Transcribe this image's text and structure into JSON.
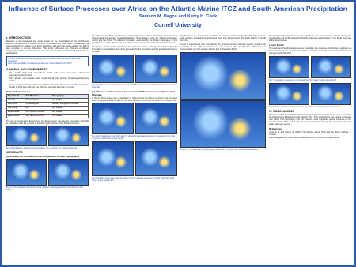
{
  "header": {
    "title": "Influence of Surface Processes over Africa on the Atlantic Marine ITCZ and South American Precipitation",
    "authors": "Samson M. Hagos and Kerry H. Cook",
    "affiliation": "Cornell University"
  },
  "intro": {
    "heading": "I. INTRODUCTION",
    "text": "Because of its monsoonal and zonal impact on the precipitation of the neighboring regions, the dynamics of Atlantic summer ITCZ merits the much effort to understand its various aspects. In addition to its direct interaction with the local ocean surface, the AMI is also sensitive to remote influences. This study addresses the influence of African topography and the surface moisture over Africa on the Atlantic ITCZ and South American precipitation.",
    "questions": [
      "Is there influence of African topography on circulation over the Atlantic and South America?",
      "How does variability in surface moisture over Africa influence the AMI?"
    ]
  },
  "model": {
    "heading": "II. MODEL AND EXPERIMENTS",
    "bullets": [
      "The GFDL R30 L14 atmospheric GCM with moist convective adjustment parameterization is used.",
      "SST, albedo, soil moisture, solar angle are all fixed at their climatological January values.",
      "Each simulation begins with an equilibrium dry atmosphere at rest. The integration length is 2700 days with the first 200 days removed as a spin up period."
    ]
  },
  "table": {
    "title": "Table of Experiments",
    "header": [
      "Experiment",
      "Soil Moisture",
      "Topography"
    ],
    "rows": [
      [
        "Control",
        "Climatological",
        "Full Global"
      ],
      [
        "Flat Africa",
        "Climatological",
        "Global - topography removed"
      ],
      [
        "Dry Africa",
        "Dry",
        "Full Global"
      ],
      [
        "Experiment1",
        "Dry Southern Africa",
        "Full Global"
      ],
      [
        "Experiment2",
        "Wet Southern Africa",
        "Full Global"
      ]
    ],
    "note": "The pair of experiments, Experiment1 and Experiment2, simulate the anomalies of the AMI in association with the dryness or wetness of the surface of the African continent."
  },
  "results": {
    "heading": "III RESULTS",
    "sub_a": "(a) Influence of Circulations Associated with African Topography",
    "sub_b": "(b) Influence of Circulations Associated with Perturbations in African Soil Moisture"
  },
  "captions": {
    "fig1": "Fig 1 Precipitation and low level circulation (a) in control, (b) in flat experiment.",
    "fig2": "Fig 2 (a) Precipitation and (b) low level moisture convergence from control minus flat Africa.",
    "fig3": "Fig 3 (a) Wind (m/s) and geopotential (m) near the tropopause and (b) zonal wind and velocity potential.",
    "fig4": "Fig 4 (a) Precipitation (mm/day) and (b) vertically integrated moisture convergence from the dry Africa experiment minus control.",
    "fig5": "Fig 5 (a) Wind (m/s) and streamfunction and (b) moisture component of the horizontal wind from the dry experiment.",
    "fig6": "Fig 6 (a) The wind and (b) precipitation anomalies of Experiment1 minus Experiment2.",
    "fig7": "Fig 7 Anomalous divergence computed from the linear model versus GCM.",
    "fig8": "Fig 8 (a) Precipitation and (b) low level circulation simulated by the linear model."
  },
  "body": {
    "col2a": "The influence of African topography is particularly large on the southeastern parts of South America and the western equatorial Atlantic. These figures show the difference between control and flat Africa. The effect of circulation generated by the African topography is that precipitation over the ITCZ is reduced while it is enhanced over southeastern South America.",
    "col2b": "Comparison of the simulated patterns of low level moisture convergence indicates that the anomalies in precipitation are mostly generated by the circulation and the associated moisture transport.",
    "col2c": "In the dry Africa experiment, precipitation is reduced over the African continent and increased over the equatorial Atlantic, and the low level westerly flow across the Atlantic is strengthened.",
    "col3a": "Fig 3a shows the upper level circulation in response to the topography. The high pressure over southern Africa and the associated wave train extend across the South Atlantic to South America.",
    "col3b": "A pair of experiments with anomalously dry and wet southern Africa is used to examine the sensitivity of the AMI to variations of soil moisture. The precipitation differences are concentrated over the western Atlantic and northeastern Brazil.",
    "col4a": "Fig 7 shows that the linear model reproduces the main features of the divergence simulated by the GCM, suggesting that the response is dominated by the linear dynamics of the forced waves.",
    "linear_heading": "Linear Model",
    "linear": "To understand the physical processes involved in the response, the forcing is applied to a linear model of the tropical atmosphere and the resulting anomalous circulation is compared with the GCM.",
    "conclusions_heading": "IV. CONCLUSIONS",
    "conclusions": "Previous studies show that the climatological precipitation over South America, particularly the Northeast, is influenced by the Atlantic ITCZ. This study shows that surface processes over Africa, both topography and soil moisture, have significant remote influence on the Atlantic marine ITCZ and South American precipitation through the generation of large scale stationary waves.",
    "references_heading": "References",
    "references": "Cook, K. H. and Hagos, S. (2005): The Atlantic marine ITCZ and the African surface, J. Climate.",
    "ack": "Acknowledgements: This research was supported by NOAA CLIVAR program."
  }
}
